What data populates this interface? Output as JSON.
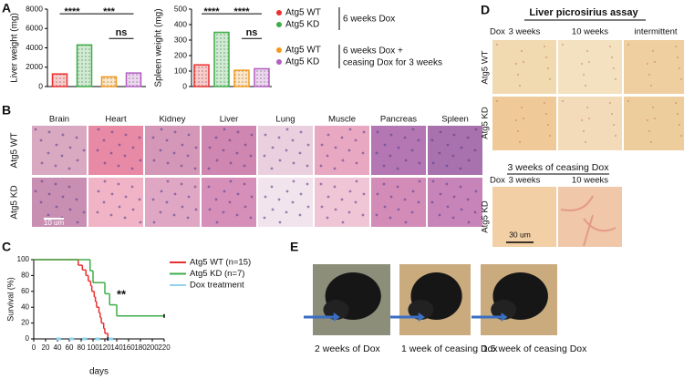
{
  "panel_labels": [
    "A",
    "B",
    "C",
    "D",
    "E"
  ],
  "chart_data": [
    {
      "type": "bar",
      "ylabel": "Liver weight (mg)",
      "categories": [
        null,
        null,
        null,
        null
      ],
      "values": [
        1300,
        4300,
        1000,
        1400
      ],
      "colors": [
        "#e8312f",
        "#3fae49",
        "#f39a1c",
        "#b35fc1"
      ],
      "ylim": [
        0,
        8000
      ],
      "yticks": [
        0,
        2000,
        4000,
        6000,
        8000
      ],
      "annotations": [
        "****",
        "***",
        "ns"
      ]
    },
    {
      "type": "bar",
      "ylabel": "Spleen weight (mg)",
      "categories": [
        null,
        null,
        null,
        null
      ],
      "values": [
        140,
        350,
        105,
        115
      ],
      "colors": [
        "#e8312f",
        "#3fae49",
        "#f39a1c",
        "#b35fc1"
      ],
      "ylim": [
        0,
        500
      ],
      "yticks": [
        0,
        100,
        200,
        300,
        400,
        500
      ],
      "annotations": [
        "****",
        "****",
        "ns"
      ]
    },
    {
      "type": "line",
      "xlabel": "days",
      "ylabel": "Survival (%)",
      "xlim": [
        0,
        220
      ],
      "xticks": [
        0,
        20,
        40,
        60,
        80,
        100,
        120,
        140,
        160,
        180,
        200,
        220
      ],
      "ylim": [
        0,
        100
      ],
      "yticks": [
        0,
        20,
        40,
        60,
        80,
        100
      ],
      "legend": "upper right",
      "annotations": [
        "**"
      ],
      "series": [
        {
          "name": "Atg5 WT (n=15)",
          "color": "#e8312f",
          "step": true,
          "x": [
            0,
            75,
            82,
            88,
            92,
            96,
            98,
            102,
            104,
            106,
            110,
            112,
            114,
            118,
            120,
            125
          ],
          "values": [
            100,
            93,
            87,
            80,
            73,
            67,
            60,
            53,
            47,
            40,
            33,
            27,
            20,
            13,
            7,
            0
          ]
        },
        {
          "name": "Atg5 KD (n=7)",
          "color": "#3fae49",
          "step": true,
          "x": [
            0,
            95,
            100,
            120,
            128,
            140,
            220
          ],
          "values": [
            100,
            86,
            71,
            57,
            43,
            29,
            29
          ]
        },
        {
          "name": "Dox treatment",
          "color": "#8fd3f0",
          "step": false,
          "x": [
            38,
            46,
            46,
            60,
            68,
            68,
            82,
            90,
            90,
            104,
            112,
            112,
            126,
            134
          ],
          "values": [
            0,
            0,
            null,
            0,
            0,
            null,
            0,
            0,
            null,
            0,
            0,
            null,
            0,
            0
          ]
        }
      ]
    }
  ],
  "legend_a": {
    "items": [
      {
        "name": "Atg5 WT",
        "color": "#e8312f"
      },
      {
        "name": "Atg5 KD",
        "color": "#3fae49"
      },
      {
        "name": "Atg5 WT",
        "color": "#f39a1c"
      },
      {
        "name": "Atg5 KD",
        "color": "#b35fc1"
      }
    ],
    "groups": [
      [
        "6 weeks Dox"
      ],
      [
        "6 weeks Dox +",
        "ceasing Dox for 3 weeks"
      ]
    ]
  },
  "histology": {
    "columns": [
      "Brain",
      "Heart",
      "Kidney",
      "Liver",
      "Lung",
      "Muscle",
      "Pancreas",
      "Spleen"
    ],
    "rows": [
      "Atg5 WT",
      "Atg5 KD"
    ],
    "scale_bar": "10 um"
  },
  "picrosirius": {
    "title": "Liver picrosirius assay",
    "dox_label": "Dox",
    "columns": [
      "3 weeks",
      "10 weeks",
      "intermittent"
    ],
    "rows": [
      "Atg5 WT",
      "Atg5 KD"
    ],
    "ceasing_title": "3 weeks of ceasing Dox",
    "ceasing_dox_label": "Dox",
    "ceasing_columns": [
      "3 weeks",
      "10 weeks"
    ],
    "ceasing_row": "Atg5 KD",
    "scale_bar": "30 um"
  },
  "photos": {
    "captions": [
      "2 weeks of Dox",
      "1 week of ceasing Dox",
      "1.5 week of ceasing Dox"
    ]
  }
}
